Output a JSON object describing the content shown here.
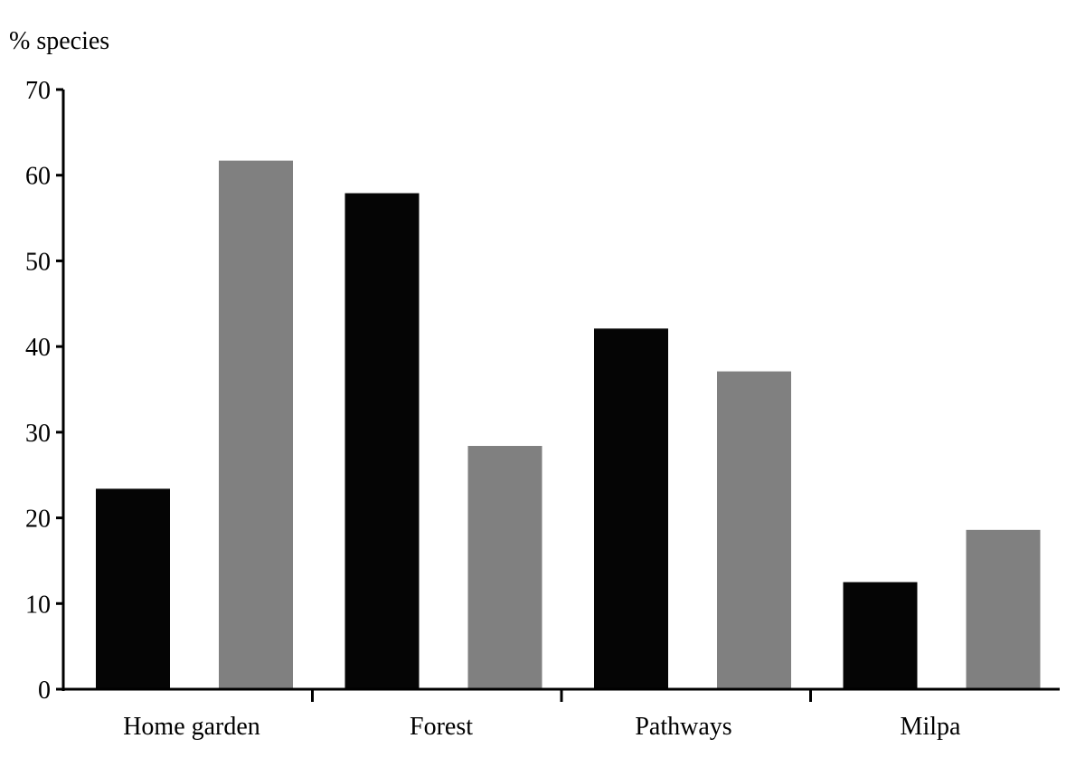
{
  "chart_data": {
    "type": "bar",
    "title": "",
    "xlabel": "",
    "ylabel": "% species",
    "ylim": [
      0,
      70
    ],
    "yticks": [
      0,
      10,
      20,
      30,
      40,
      50,
      60,
      70
    ],
    "categories": [
      "Home garden",
      "Forest",
      "Pathways",
      "Milpa"
    ],
    "series": [
      {
        "color": "#050505",
        "values": [
          23.4,
          57.9,
          42.1,
          12.5
        ]
      },
      {
        "color": "#808080",
        "values": [
          61.7,
          28.4,
          37.1,
          18.6
        ]
      }
    ],
    "grid": false,
    "legend": "none"
  }
}
